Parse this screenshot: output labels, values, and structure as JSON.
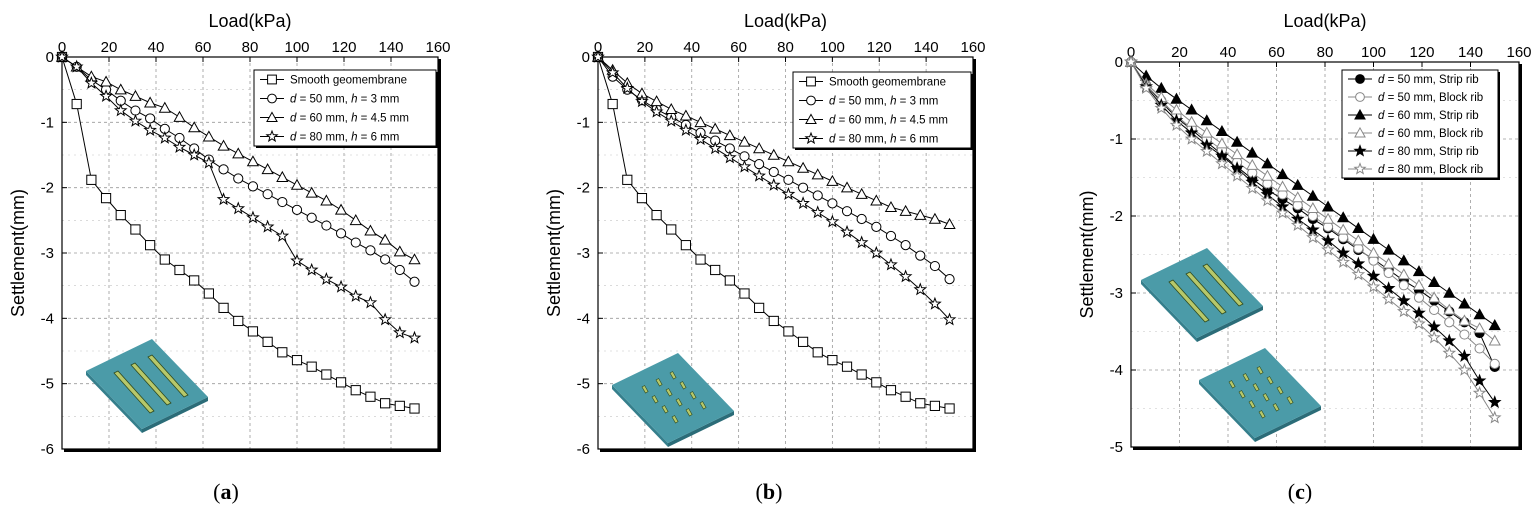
{
  "chart_data": [
    {
      "id": "a",
      "type": "line",
      "subfigure_label": "a",
      "xlabel": "Load(kPa)",
      "ylabel": "Settlement(mm)",
      "xlim": [
        0,
        160
      ],
      "ylim": [
        -6,
        0
      ],
      "xticks": [
        0,
        20,
        40,
        60,
        80,
        100,
        120,
        140,
        160
      ],
      "yticks": [
        0,
        -1,
        -2,
        -3,
        -4,
        -5,
        -6
      ],
      "legend_position": "top-right",
      "inset": "strip",
      "series": [
        {
          "name": "Smooth geomembrane",
          "label_parts": [
            "Smooth geomembrane"
          ],
          "marker": "square",
          "fill": "none",
          "color": "#000000",
          "x": [
            0,
            6.25,
            12.5,
            18.75,
            25,
            31.25,
            37.5,
            43.75,
            50,
            56.25,
            62.5,
            68.75,
            75,
            81.25,
            87.5,
            93.75,
            100,
            106.25,
            112.5,
            118.75,
            125,
            131.25,
            137.5,
            143.75,
            150
          ],
          "y": [
            0,
            -0.72,
            -1.88,
            -2.16,
            -2.42,
            -2.64,
            -2.88,
            -3.1,
            -3.26,
            -3.42,
            -3.62,
            -3.84,
            -4.04,
            -4.2,
            -4.36,
            -4.52,
            -4.64,
            -4.74,
            -4.86,
            -4.98,
            -5.1,
            -5.2,
            -5.3,
            -5.34,
            -5.38
          ]
        },
        {
          "name": "d = 50 mm, h = 3 mm",
          "label_parts": [
            "d",
            " = 50 mm, ",
            "h",
            " = 3 mm"
          ],
          "marker": "circle",
          "fill": "none",
          "color": "#000000",
          "x": [
            0,
            6.25,
            12.5,
            18.75,
            25,
            31.25,
            37.5,
            43.75,
            50,
            56.25,
            62.5,
            68.75,
            75,
            81.25,
            87.5,
            93.75,
            100,
            106.25,
            112.5,
            118.75,
            125,
            131.25,
            137.5,
            143.75,
            150
          ],
          "y": [
            0,
            -0.15,
            -0.35,
            -0.5,
            -0.67,
            -0.82,
            -0.94,
            -1.1,
            -1.24,
            -1.4,
            -1.57,
            -1.72,
            -1.86,
            -1.98,
            -2.1,
            -2.22,
            -2.34,
            -2.46,
            -2.58,
            -2.7,
            -2.84,
            -2.96,
            -3.1,
            -3.26,
            -3.44
          ]
        },
        {
          "name": "d = 60 mm, h = 4.5 mm",
          "label_parts": [
            "d",
            " = 60 mm, ",
            "h",
            " = 4.5 mm"
          ],
          "marker": "triangle",
          "fill": "none",
          "color": "#000000",
          "x": [
            0,
            6.25,
            12.5,
            18.75,
            25,
            31.25,
            37.5,
            43.75,
            50,
            56.25,
            62.5,
            68.75,
            75,
            81.25,
            87.5,
            93.75,
            100,
            106.25,
            112.5,
            118.75,
            125,
            131.25,
            137.5,
            143.75,
            150
          ],
          "y": [
            0,
            -0.15,
            -0.3,
            -0.38,
            -0.5,
            -0.6,
            -0.7,
            -0.78,
            -0.92,
            -1.08,
            -1.22,
            -1.36,
            -1.48,
            -1.6,
            -1.72,
            -1.84,
            -1.96,
            -2.08,
            -2.2,
            -2.34,
            -2.5,
            -2.66,
            -2.8,
            -2.98,
            -3.1
          ]
        },
        {
          "name": "d = 80 mm, h = 6 mm",
          "label_parts": [
            "d",
            " = 80 mm, ",
            "h",
            " = 6 mm"
          ],
          "marker": "star",
          "fill": "none",
          "color": "#000000",
          "x": [
            0,
            6.25,
            12.5,
            18.75,
            25,
            31.25,
            37.5,
            43.75,
            50,
            56.25,
            62.5,
            68.75,
            75,
            81.25,
            87.5,
            93.75,
            100,
            106.25,
            112.5,
            118.75,
            125,
            131.25,
            137.5,
            143.75,
            150
          ],
          "y": [
            0,
            -0.15,
            -0.4,
            -0.6,
            -0.82,
            -0.98,
            -1.12,
            -1.24,
            -1.38,
            -1.5,
            -1.62,
            -2.18,
            -2.32,
            -2.46,
            -2.6,
            -2.74,
            -3.12,
            -3.26,
            -3.4,
            -3.52,
            -3.66,
            -3.76,
            -4.02,
            -4.22,
            -4.3
          ]
        }
      ]
    },
    {
      "id": "b",
      "type": "line",
      "subfigure_label": "b",
      "xlabel": "Load(kPa)",
      "ylabel": "Settlement(mm)",
      "xlim": [
        0,
        160
      ],
      "ylim": [
        -6,
        0
      ],
      "xticks": [
        0,
        20,
        40,
        60,
        80,
        100,
        120,
        140,
        160
      ],
      "yticks": [
        0,
        -1,
        -2,
        -3,
        -4,
        -5,
        -6
      ],
      "legend_position": "top-right",
      "inset": "block",
      "series": [
        {
          "name": "Smooth geomembrane",
          "label_parts": [
            "Smooth geomembrane"
          ],
          "marker": "square",
          "fill": "none",
          "color": "#000000",
          "x": [
            0,
            6.25,
            12.5,
            18.75,
            25,
            31.25,
            37.5,
            43.75,
            50,
            56.25,
            62.5,
            68.75,
            75,
            81.25,
            87.5,
            93.75,
            100,
            106.25,
            112.5,
            118.75,
            125,
            131.25,
            137.5,
            143.75,
            150
          ],
          "y": [
            0,
            -0.72,
            -1.88,
            -2.16,
            -2.42,
            -2.64,
            -2.88,
            -3.1,
            -3.26,
            -3.42,
            -3.62,
            -3.84,
            -4.04,
            -4.2,
            -4.36,
            -4.52,
            -4.64,
            -4.74,
            -4.86,
            -4.98,
            -5.1,
            -5.2,
            -5.3,
            -5.34,
            -5.38
          ]
        },
        {
          "name": "d = 50 mm, h = 3 mm",
          "label_parts": [
            "d",
            " = 50 mm, ",
            "h",
            " = 3 mm"
          ],
          "marker": "circle",
          "fill": "none",
          "color": "#000000",
          "x": [
            0,
            6.25,
            12.5,
            18.75,
            25,
            31.25,
            37.5,
            43.75,
            50,
            56.25,
            62.5,
            68.75,
            75,
            81.25,
            87.5,
            93.75,
            100,
            106.25,
            112.5,
            118.75,
            125,
            131.25,
            137.5,
            143.75,
            150
          ],
          "y": [
            0,
            -0.3,
            -0.5,
            -0.66,
            -0.8,
            -0.92,
            -1.04,
            -1.16,
            -1.28,
            -1.4,
            -1.52,
            -1.64,
            -1.76,
            -1.88,
            -2.0,
            -2.12,
            -2.24,
            -2.36,
            -2.48,
            -2.6,
            -2.74,
            -2.88,
            -3.04,
            -3.2,
            -3.4
          ]
        },
        {
          "name": "d = 60 mm, h = 4.5 mm",
          "label_parts": [
            "d",
            " = 60 mm, ",
            "h",
            " = 4.5 mm"
          ],
          "marker": "triangle",
          "fill": "none",
          "color": "#000000",
          "x": [
            0,
            6.25,
            12.5,
            18.75,
            25,
            31.25,
            37.5,
            43.75,
            50,
            56.25,
            62.5,
            68.75,
            75,
            81.25,
            87.5,
            93.75,
            100,
            106.25,
            112.5,
            118.75,
            125,
            131.25,
            137.5,
            143.75,
            150
          ],
          "y": [
            0,
            -0.2,
            -0.4,
            -0.56,
            -0.68,
            -0.8,
            -0.9,
            -1.0,
            -1.1,
            -1.2,
            -1.3,
            -1.4,
            -1.5,
            -1.6,
            -1.7,
            -1.8,
            -1.9,
            -2.0,
            -2.1,
            -2.2,
            -2.3,
            -2.36,
            -2.42,
            -2.48,
            -2.56
          ]
        },
        {
          "name": "d = 80 mm, h = 6 mm",
          "label_parts": [
            "d",
            " = 80 mm, ",
            "h",
            " = 6 mm"
          ],
          "marker": "star",
          "fill": "none",
          "color": "#000000",
          "x": [
            0,
            6.25,
            12.5,
            18.75,
            25,
            31.25,
            37.5,
            43.75,
            50,
            56.25,
            62.5,
            68.75,
            75,
            81.25,
            87.5,
            93.75,
            100,
            106.25,
            112.5,
            118.75,
            125,
            131.25,
            137.5,
            143.75,
            150
          ],
          "y": [
            0,
            -0.24,
            -0.48,
            -0.68,
            -0.84,
            -0.98,
            -1.12,
            -1.26,
            -1.4,
            -1.54,
            -1.68,
            -1.82,
            -1.96,
            -2.1,
            -2.24,
            -2.38,
            -2.52,
            -2.68,
            -2.84,
            -3.0,
            -3.18,
            -3.36,
            -3.56,
            -3.78,
            -4.02
          ]
        }
      ]
    },
    {
      "id": "c",
      "type": "line",
      "subfigure_label": "c",
      "xlabel": "Load(kPa)",
      "ylabel": "Settlement(mm)",
      "xlim": [
        0,
        160
      ],
      "ylim": [
        -5,
        0
      ],
      "xticks": [
        0,
        20,
        40,
        60,
        80,
        100,
        120,
        140,
        160
      ],
      "yticks": [
        0,
        -1,
        -2,
        -3,
        -4,
        -5
      ],
      "legend_position": "top-right",
      "inset": "both",
      "series": [
        {
          "name": "d = 50 mm, Strip rib",
          "label_parts": [
            "d",
            " = 50 mm, Strip rib"
          ],
          "marker": "circle",
          "fill": "#000000",
          "color": "#000000",
          "x": [
            0,
            6.25,
            12.5,
            18.75,
            25,
            31.25,
            37.5,
            43.75,
            50,
            56.25,
            62.5,
            68.75,
            75,
            81.25,
            87.5,
            93.75,
            100,
            106.25,
            112.5,
            118.75,
            125,
            131.25,
            137.5,
            143.75,
            150
          ],
          "y": [
            0,
            -0.3,
            -0.52,
            -0.72,
            -0.88,
            -1.04,
            -1.2,
            -1.36,
            -1.52,
            -1.66,
            -1.78,
            -1.9,
            -2.04,
            -2.16,
            -2.3,
            -2.44,
            -2.56,
            -2.7,
            -2.84,
            -2.96,
            -3.1,
            -3.24,
            -3.38,
            -3.52,
            -3.96
          ]
        },
        {
          "name": "d = 50 mm, Block rib",
          "label_parts": [
            "d",
            " = 50 mm, Block rib"
          ],
          "marker": "circle",
          "fill": "none",
          "color": "#888888",
          "x": [
            0,
            6.25,
            12.5,
            18.75,
            25,
            31.25,
            37.5,
            43.75,
            50,
            56.25,
            62.5,
            68.75,
            75,
            81.25,
            87.5,
            93.75,
            100,
            106.25,
            112.5,
            118.75,
            125,
            131.25,
            137.5,
            143.75,
            150
          ],
          "y": [
            0,
            -0.3,
            -0.5,
            -0.7,
            -0.86,
            -1.0,
            -1.14,
            -1.3,
            -1.44,
            -1.58,
            -1.72,
            -1.86,
            -2.0,
            -2.14,
            -2.28,
            -2.42,
            -2.58,
            -2.74,
            -2.9,
            -3.06,
            -3.22,
            -3.38,
            -3.54,
            -3.72,
            -3.92
          ]
        },
        {
          "name": "d = 60 mm, Strip rib",
          "label_parts": [
            "d",
            " = 60 mm, Strip rib"
          ],
          "marker": "triangle",
          "fill": "#000000",
          "color": "#000000",
          "x": [
            0,
            6.25,
            12.5,
            18.75,
            25,
            31.25,
            37.5,
            43.75,
            50,
            56.25,
            62.5,
            68.75,
            75,
            81.25,
            87.5,
            93.75,
            100,
            106.25,
            112.5,
            118.75,
            125,
            131.25,
            137.5,
            143.75,
            150
          ],
          "y": [
            0,
            -0.18,
            -0.34,
            -0.48,
            -0.62,
            -0.76,
            -0.9,
            -1.04,
            -1.18,
            -1.32,
            -1.46,
            -1.6,
            -1.74,
            -1.88,
            -2.02,
            -2.16,
            -2.3,
            -2.44,
            -2.58,
            -2.72,
            -2.86,
            -3.0,
            -3.14,
            -3.28,
            -3.42
          ]
        },
        {
          "name": "d = 60 mm, Block rib",
          "label_parts": [
            "d",
            " = 60 mm, Block rib"
          ],
          "marker": "triangle",
          "fill": "none",
          "color": "#888888",
          "x": [
            0,
            6.25,
            12.5,
            18.75,
            25,
            31.25,
            37.5,
            43.75,
            50,
            56.25,
            62.5,
            68.75,
            75,
            81.25,
            87.5,
            93.75,
            100,
            106.25,
            112.5,
            118.75,
            125,
            131.25,
            137.5,
            143.75,
            150
          ],
          "y": [
            0,
            -0.28,
            -0.46,
            -0.62,
            -0.78,
            -0.92,
            -1.06,
            -1.2,
            -1.34,
            -1.48,
            -1.62,
            -1.76,
            -1.9,
            -2.04,
            -2.18,
            -2.32,
            -2.48,
            -2.62,
            -2.76,
            -2.9,
            -3.06,
            -3.22,
            -3.36,
            -3.46,
            -3.62
          ]
        },
        {
          "name": "d = 80 mm, Strip rib",
          "label_parts": [
            "d",
            " = 80 mm, Strip rib"
          ],
          "marker": "star",
          "fill": "#000000",
          "color": "#000000",
          "x": [
            0,
            6.25,
            12.5,
            18.75,
            25,
            31.25,
            37.5,
            43.75,
            50,
            56.25,
            62.5,
            68.75,
            75,
            81.25,
            87.5,
            93.75,
            100,
            106.25,
            112.5,
            118.75,
            125,
            131.25,
            137.5,
            143.75,
            150
          ],
          "y": [
            0,
            -0.32,
            -0.56,
            -0.76,
            -0.92,
            -1.08,
            -1.22,
            -1.38,
            -1.56,
            -1.72,
            -1.88,
            -2.04,
            -2.18,
            -2.32,
            -2.48,
            -2.62,
            -2.78,
            -2.94,
            -3.1,
            -3.26,
            -3.44,
            -3.62,
            -3.82,
            -4.14,
            -4.42
          ]
        },
        {
          "name": "d = 80 mm, Block rib",
          "label_parts": [
            "d",
            " = 80 mm, Block rib"
          ],
          "marker": "star",
          "fill": "none",
          "color": "#888888",
          "x": [
            0,
            6.25,
            12.5,
            18.75,
            25,
            31.25,
            37.5,
            43.75,
            50,
            56.25,
            62.5,
            68.75,
            75,
            81.25,
            87.5,
            93.75,
            100,
            106.25,
            112.5,
            118.75,
            125,
            131.25,
            137.5,
            143.75,
            150
          ],
          "y": [
            0,
            -0.34,
            -0.6,
            -0.82,
            -1.0,
            -1.16,
            -1.32,
            -1.48,
            -1.64,
            -1.8,
            -1.96,
            -2.12,
            -2.28,
            -2.44,
            -2.6,
            -2.76,
            -2.92,
            -3.08,
            -3.24,
            -3.4,
            -3.58,
            -3.78,
            -4.0,
            -4.3,
            -4.62
          ]
        }
      ]
    }
  ]
}
